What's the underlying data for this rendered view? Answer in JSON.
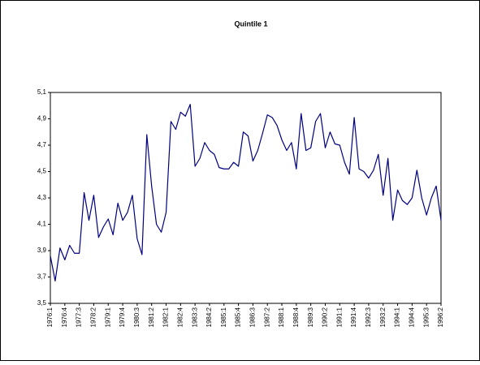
{
  "chart_data": {
    "type": "line",
    "title": "Quintile 1",
    "categories": [
      "1976:1",
      null,
      null,
      "1976:4",
      null,
      null,
      "1977:3",
      null,
      null,
      "1978:2",
      null,
      null,
      "1979:1",
      null,
      null,
      "1979:4",
      null,
      null,
      "1980:3",
      null,
      null,
      "1981:2",
      null,
      null,
      "1982:1",
      null,
      null,
      "1982:4",
      null,
      null,
      "1983:3",
      null,
      null,
      "1984:2",
      null,
      null,
      "1985:1",
      null,
      null,
      "1985:4",
      null,
      null,
      "1986:3",
      null,
      null,
      "1987:2",
      null,
      null,
      "1988:1",
      null,
      null,
      "1988:4",
      null,
      null,
      "1989:3",
      null,
      null,
      "1990:2",
      null,
      null,
      "1991:1",
      null,
      null,
      "1991:4",
      null,
      null,
      "1992:3",
      null,
      null,
      "1993:2",
      null,
      null,
      "1994:1",
      null,
      null,
      "1994:4",
      null,
      null,
      "1995:3",
      null,
      null,
      "1996:2"
    ],
    "values": [
      3.86,
      3.67,
      3.92,
      3.83,
      3.94,
      3.88,
      3.88,
      4.34,
      4.13,
      4.32,
      4.0,
      4.08,
      4.14,
      4.02,
      4.26,
      4.13,
      4.19,
      4.32,
      3.99,
      3.87,
      4.78,
      4.39,
      4.1,
      4.04,
      4.19,
      4.88,
      4.82,
      4.95,
      4.92,
      5.01,
      4.54,
      4.6,
      4.72,
      4.66,
      4.63,
      4.53,
      4.52,
      4.52,
      4.57,
      4.54,
      4.8,
      4.77,
      4.58,
      4.66,
      4.79,
      4.93,
      4.91,
      4.85,
      4.74,
      4.66,
      4.72,
      4.52,
      4.94,
      4.66,
      4.68,
      4.88,
      4.94,
      4.68,
      4.8,
      4.71,
      4.7,
      4.57,
      4.48,
      4.91,
      4.52,
      4.5,
      4.45,
      4.51,
      4.63,
      4.32,
      4.6,
      4.13,
      4.36,
      4.28,
      4.25,
      4.3,
      4.51,
      4.3,
      4.17,
      4.3,
      4.39,
      4.13
    ],
    "color": "#000080",
    "ylim": [
      3.5,
      5.1
    ],
    "yticks": [
      {
        "value": 3.5,
        "label": "3,5"
      },
      {
        "value": 3.7,
        "label": "3,7"
      },
      {
        "value": 3.9,
        "label": "3,9"
      },
      {
        "value": 4.1,
        "label": "4,1"
      },
      {
        "value": 4.3,
        "label": "4,3"
      },
      {
        "value": 4.5,
        "label": "4,5"
      },
      {
        "value": 4.7,
        "label": "4,7"
      },
      {
        "value": 4.9,
        "label": "4,9"
      },
      {
        "value": 5.1,
        "label": "5,1"
      }
    ],
    "grid": false
  }
}
